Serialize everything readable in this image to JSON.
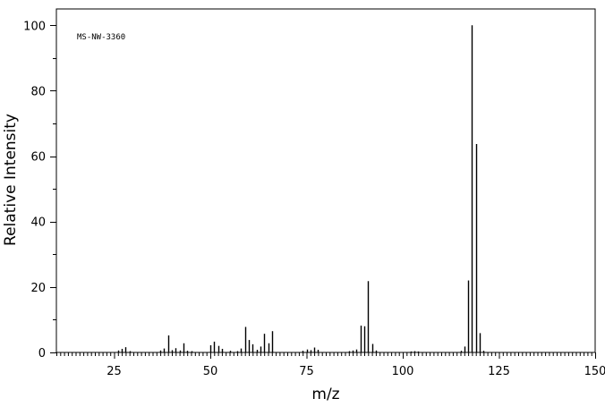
{
  "chart_data": {
    "type": "bar",
    "annotation": "MS-NW-3360",
    "xlabel": "m/z",
    "ylabel": "Relative Intensity",
    "xlim": [
      10,
      150
    ],
    "ylim": [
      0,
      105
    ],
    "x_ticks": [
      25,
      50,
      75,
      100,
      125,
      150
    ],
    "y_ticks": [
      0,
      20,
      40,
      60,
      80,
      100
    ],
    "grid": false,
    "legend": "none",
    "peaks": {
      "x": [
        26,
        27,
        28,
        29,
        37,
        38,
        39,
        40,
        41,
        42,
        43,
        44,
        45,
        50,
        51,
        52,
        53,
        55,
        57,
        58,
        59,
        60,
        61,
        62,
        63,
        64,
        65,
        66,
        74,
        75,
        76,
        77,
        78,
        86,
        87,
        88,
        89,
        90,
        91,
        92,
        93,
        102,
        103,
        104,
        115,
        116,
        117,
        118,
        119,
        120,
        121
      ],
      "y": [
        0.6,
        1.1,
        1.6,
        0.4,
        0.6,
        1.2,
        5.2,
        0.7,
        1.3,
        0.6,
        2.8,
        0.5,
        0.4,
        2.2,
        3.3,
        2.0,
        1.1,
        0.5,
        0.4,
        1.2,
        7.8,
        3.8,
        2.5,
        0.8,
        1.8,
        5.7,
        2.8,
        6.5,
        0.5,
        0.9,
        0.7,
        1.5,
        0.8,
        0.4,
        0.6,
        0.9,
        8.2,
        8.0,
        21.8,
        2.6,
        0.6,
        0.3,
        0.4,
        0.3,
        0.5,
        1.8,
        22.0,
        100,
        63.7,
        5.9,
        0.5
      ]
    }
  }
}
